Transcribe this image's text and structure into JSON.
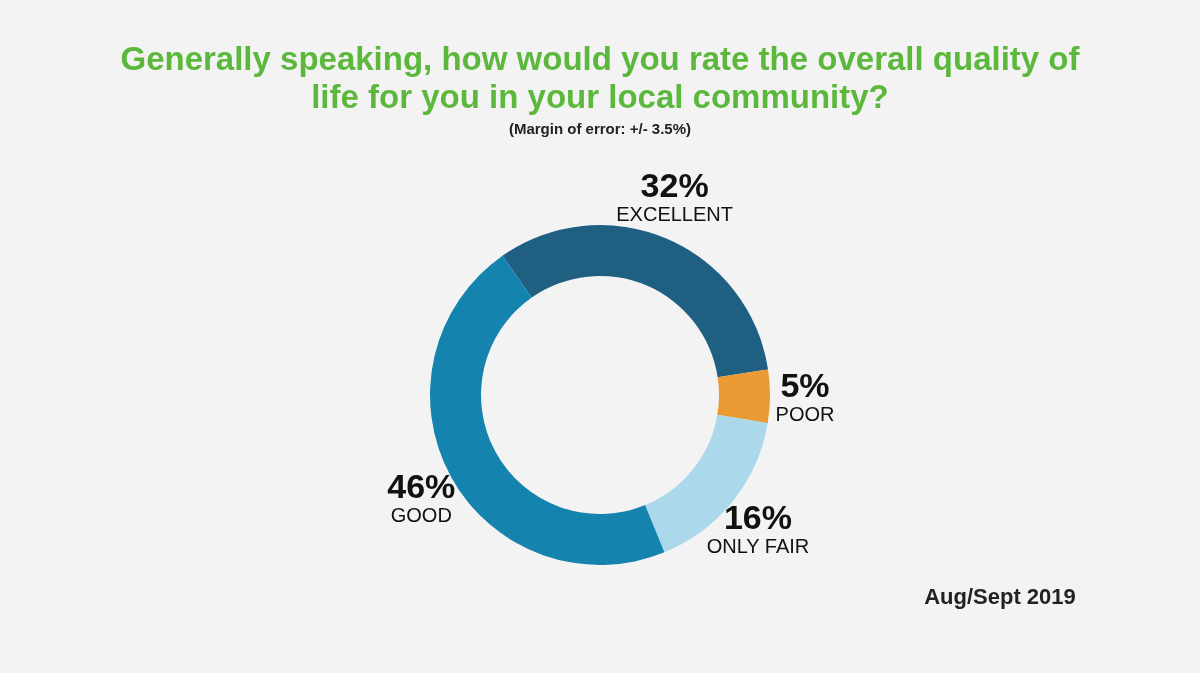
{
  "chart_data": {
    "type": "donut",
    "title": "Generally speaking, how would you rate the overall quality of life for you in your local community?",
    "subtitle": "(Margin of error: +/- 3.5%)",
    "categories": [
      "EXCELLENT",
      "POOR",
      "ONLY FAIR",
      "GOOD"
    ],
    "values": [
      32,
      5,
      16,
      46
    ],
    "colors": [
      "#1e5f82",
      "#e99a33",
      "#acd8ec",
      "#1483ad"
    ],
    "value_labels": [
      "32%",
      "5%",
      "16%",
      "46%"
    ],
    "legend": false,
    "annotations": [
      "Aug/Sept 2019"
    ]
  }
}
